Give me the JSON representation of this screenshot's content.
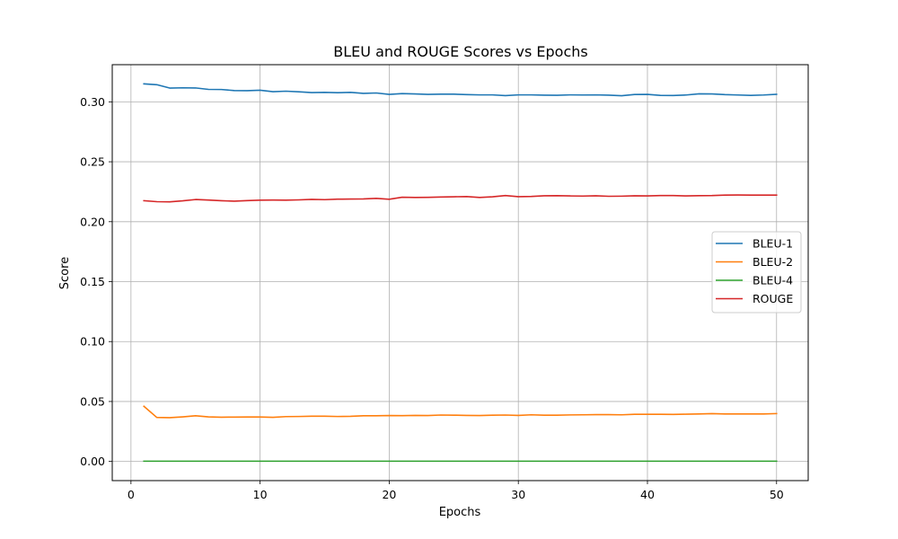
{
  "chart_data": {
    "type": "line",
    "title": "BLEU and ROUGE Scores vs Epochs",
    "xlabel": "Epochs",
    "ylabel": "Score",
    "xlim": [
      -1.45,
      52.45
    ],
    "ylim": [
      -0.016,
      0.331
    ],
    "xticks": [
      0,
      10,
      20,
      30,
      40,
      50
    ],
    "yticks": [
      0.0,
      0.05,
      0.1,
      0.15,
      0.2,
      0.25,
      0.3
    ],
    "ytick_labels": [
      "0.00",
      "0.05",
      "0.10",
      "0.15",
      "0.20",
      "0.25",
      "0.30"
    ],
    "grid": true,
    "legend_position": "center-right",
    "x": [
      1,
      2,
      3,
      4,
      5,
      6,
      7,
      8,
      9,
      10,
      11,
      12,
      13,
      14,
      15,
      16,
      17,
      18,
      19,
      20,
      21,
      22,
      23,
      24,
      25,
      26,
      27,
      28,
      29,
      30,
      31,
      32,
      33,
      34,
      35,
      36,
      37,
      38,
      39,
      40,
      41,
      42,
      43,
      44,
      45,
      46,
      47,
      48,
      49,
      50
    ],
    "series": [
      {
        "name": "BLEU-1",
        "color": "#1f77b4",
        "values": [
          0.315,
          0.3143,
          0.3115,
          0.3117,
          0.3116,
          0.3104,
          0.3103,
          0.3094,
          0.3093,
          0.3097,
          0.3085,
          0.3089,
          0.3084,
          0.3077,
          0.3079,
          0.3076,
          0.3079,
          0.3071,
          0.3074,
          0.3062,
          0.3069,
          0.3066,
          0.3062,
          0.3064,
          0.3064,
          0.306,
          0.3058,
          0.3058,
          0.3052,
          0.3058,
          0.3058,
          0.3056,
          0.3055,
          0.3058,
          0.3057,
          0.3058,
          0.3056,
          0.3051,
          0.3061,
          0.3062,
          0.3054,
          0.3053,
          0.3057,
          0.3067,
          0.3066,
          0.306,
          0.3057,
          0.3054,
          0.3057,
          0.3063
        ]
      },
      {
        "name": "BLEU-2",
        "color": "#ff7f0e",
        "values": [
          0.046,
          0.0367,
          0.0365,
          0.0372,
          0.0381,
          0.0372,
          0.0369,
          0.037,
          0.0371,
          0.0371,
          0.0368,
          0.0374,
          0.0375,
          0.0377,
          0.0377,
          0.0375,
          0.0376,
          0.0381,
          0.0381,
          0.0383,
          0.0382,
          0.0384,
          0.0383,
          0.0387,
          0.0386,
          0.0384,
          0.0383,
          0.0386,
          0.0387,
          0.0384,
          0.0389,
          0.0386,
          0.0386,
          0.0388,
          0.0389,
          0.039,
          0.039,
          0.0389,
          0.0393,
          0.0393,
          0.0393,
          0.0392,
          0.0394,
          0.0396,
          0.0399,
          0.0396,
          0.0396,
          0.0396,
          0.0396,
          0.0399
        ]
      },
      {
        "name": "BLEU-4",
        "color": "#2ca02c",
        "values": [
          0.0002,
          0.0002,
          0.0002,
          0.0002,
          0.0002,
          0.0002,
          0.0002,
          0.0002,
          0.0002,
          0.0002,
          0.0002,
          0.0002,
          0.0002,
          0.0002,
          0.0002,
          0.0002,
          0.0002,
          0.0002,
          0.0002,
          0.0002,
          0.0002,
          0.0002,
          0.0002,
          0.0002,
          0.0002,
          0.0002,
          0.0002,
          0.0002,
          0.0002,
          0.0002,
          0.0002,
          0.0002,
          0.0002,
          0.0002,
          0.0002,
          0.0002,
          0.0002,
          0.0002,
          0.0002,
          0.0002,
          0.0002,
          0.0002,
          0.0002,
          0.0002,
          0.0002,
          0.0002,
          0.0002,
          0.0002,
          0.0002,
          0.0002
        ]
      },
      {
        "name": "ROUGE",
        "color": "#d62728",
        "values": [
          0.2175,
          0.2167,
          0.2166,
          0.2174,
          0.2185,
          0.2181,
          0.2175,
          0.2171,
          0.2176,
          0.218,
          0.2181,
          0.218,
          0.2182,
          0.2186,
          0.2184,
          0.2188,
          0.2189,
          0.219,
          0.2195,
          0.2187,
          0.2204,
          0.2202,
          0.2203,
          0.2206,
          0.2208,
          0.221,
          0.2202,
          0.2208,
          0.2218,
          0.2209,
          0.2211,
          0.2216,
          0.2217,
          0.2215,
          0.2214,
          0.2216,
          0.2212,
          0.2213,
          0.2216,
          0.2215,
          0.2218,
          0.2218,
          0.2215,
          0.2217,
          0.2218,
          0.2222,
          0.2223,
          0.2222,
          0.2222,
          0.2222
        ]
      }
    ]
  }
}
